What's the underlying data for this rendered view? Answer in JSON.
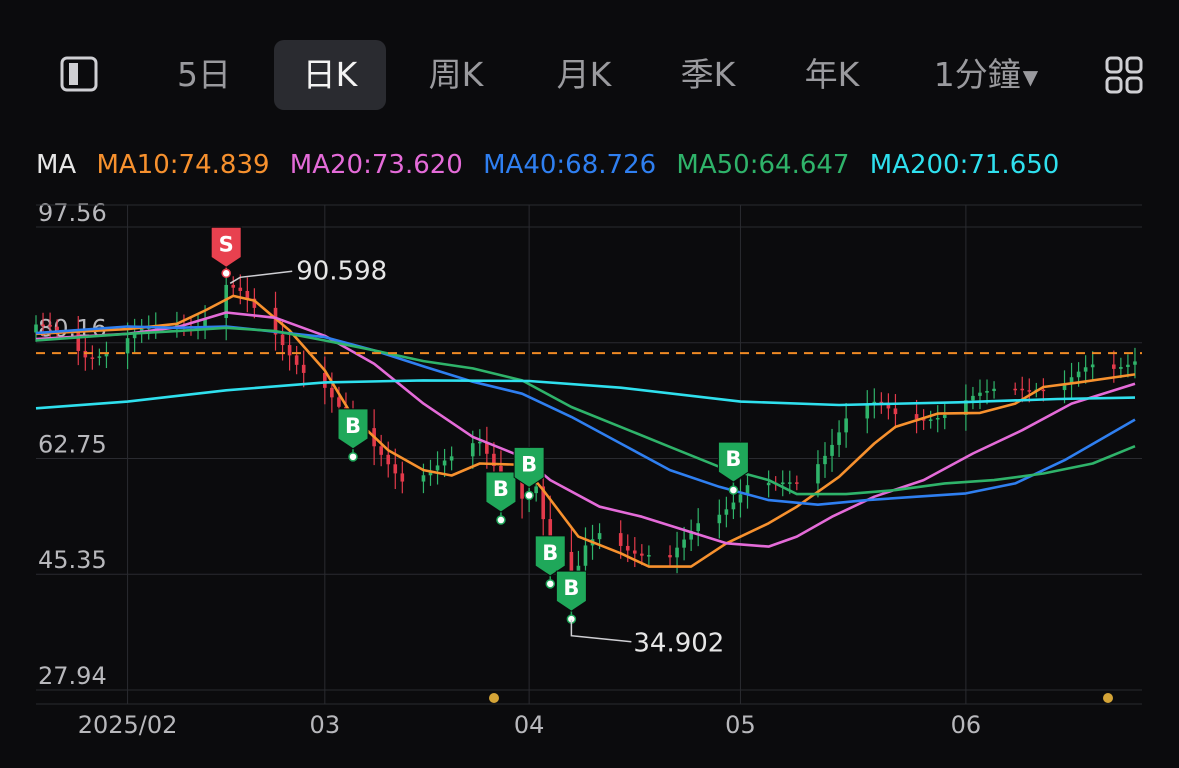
{
  "tabs": {
    "items": [
      {
        "label": "5日"
      },
      {
        "label": "日K"
      },
      {
        "label": "周K"
      },
      {
        "label": "月K"
      },
      {
        "label": "季K"
      },
      {
        "label": "年K"
      },
      {
        "label": "1分鐘"
      }
    ],
    "active_index": 1
  },
  "ma_legend": {
    "title": "MA",
    "items": [
      {
        "label": "MA10:74.839",
        "color": "#f7912e"
      },
      {
        "label": "MA20:73.620",
        "color": "#e46bd8"
      },
      {
        "label": "MA40:68.726",
        "color": "#2f7ff0"
      },
      {
        "label": "MA50:64.647",
        "color": "#2fb36a"
      },
      {
        "label": "MA200:71.650",
        "color": "#2fe0ee"
      }
    ]
  },
  "chart_data": {
    "type": "candlestick",
    "y_ticks": [
      "97.56",
      "80.16",
      "62.75",
      "45.35",
      "27.94"
    ],
    "ylim": [
      27.94,
      97.56
    ],
    "x_ticks": [
      {
        "label": "2025/02",
        "date": "2025-02-03"
      },
      {
        "label": "03",
        "date": "2025-03-03"
      },
      {
        "label": "04",
        "date": "2025-04-01"
      },
      {
        "label": "05",
        "date": "2025-05-01"
      },
      {
        "label": "06",
        "date": "2025-06-02"
      }
    ],
    "xlim": [
      "2025-01-21",
      "2025-06-27"
    ],
    "current_price": 78.6,
    "max_label": {
      "value": "90.598",
      "date": "2025-02-17"
    },
    "min_label": {
      "value": "34.902",
      "date": "2025-04-07"
    },
    "signals": [
      {
        "type": "S",
        "date": "2025-02-17",
        "price": 90.6
      },
      {
        "type": "B",
        "date": "2025-03-07",
        "price": 63.0
      },
      {
        "type": "B",
        "date": "2025-03-28",
        "price": 53.5
      },
      {
        "type": "B",
        "date": "2025-04-01",
        "price": 57.2
      },
      {
        "type": "B",
        "date": "2025-04-04",
        "price": 43.9
      },
      {
        "type": "B",
        "date": "2025-04-07",
        "price": 38.6
      },
      {
        "type": "B",
        "date": "2025-04-30",
        "price": 58.0
      }
    ],
    "price_points": [
      [
        "2025-01-21",
        81.7
      ],
      [
        "2025-01-24",
        81.0
      ],
      [
        "2025-01-28",
        79.0
      ],
      [
        "2025-02-03",
        80.5
      ],
      [
        "2025-02-07",
        81.5
      ],
      [
        "2025-02-10",
        83.0
      ],
      [
        "2025-02-13",
        84.0
      ],
      [
        "2025-02-17",
        89.0
      ],
      [
        "2025-02-19",
        87.0
      ],
      [
        "2025-02-21",
        84.0
      ],
      [
        "2025-02-25",
        80.0
      ],
      [
        "2025-02-27",
        78.0
      ],
      [
        "2025-03-03",
        74.0
      ],
      [
        "2025-03-05",
        70.0
      ],
      [
        "2025-03-07",
        66.0
      ],
      [
        "2025-03-11",
        63.0
      ],
      [
        "2025-03-14",
        60.5
      ],
      [
        "2025-03-18",
        61.5
      ],
      [
        "2025-03-21",
        62.0
      ],
      [
        "2025-03-25",
        64.5
      ],
      [
        "2025-03-27",
        62.0
      ],
      [
        "2025-03-31",
        58.0
      ],
      [
        "2025-04-02",
        59.0
      ],
      [
        "2025-04-04",
        48.0
      ],
      [
        "2025-04-07",
        42.0
      ],
      [
        "2025-04-09",
        49.0
      ],
      [
        "2025-04-11",
        52.0
      ],
      [
        "2025-04-14",
        51.0
      ],
      [
        "2025-04-17",
        48.5
      ],
      [
        "2025-04-21",
        46.5
      ],
      [
        "2025-04-23",
        49.5
      ],
      [
        "2025-04-25",
        53.0
      ],
      [
        "2025-04-29",
        56.5
      ],
      [
        "2025-05-02",
        59.0
      ],
      [
        "2025-05-06",
        57.5
      ],
      [
        "2025-05-09",
        58.5
      ],
      [
        "2025-05-13",
        64.5
      ],
      [
        "2025-05-16",
        69.5
      ],
      [
        "2025-05-20",
        70.0
      ],
      [
        "2025-05-23",
        68.5
      ],
      [
        "2025-05-28",
        70.0
      ],
      [
        "2025-06-02",
        71.0
      ],
      [
        "2025-06-05",
        71.5
      ],
      [
        "2025-06-09",
        73.5
      ],
      [
        "2025-06-12",
        74.5
      ],
      [
        "2025-06-16",
        74.0
      ],
      [
        "2025-06-20",
        75.5
      ],
      [
        "2025-06-23",
        76.0
      ],
      [
        "2025-06-26",
        78.6
      ]
    ],
    "series": [
      {
        "name": "MA10",
        "color": "#f7912e",
        "points": [
          [
            "2025-01-21",
            81.5
          ],
          [
            "2025-02-03",
            82.2
          ],
          [
            "2025-02-10",
            83.0
          ],
          [
            "2025-02-14",
            85.0
          ],
          [
            "2025-02-18",
            87.2
          ],
          [
            "2025-02-21",
            86.5
          ],
          [
            "2025-02-26",
            82.0
          ],
          [
            "2025-03-03",
            76.0
          ],
          [
            "2025-03-07",
            69.0
          ],
          [
            "2025-03-12",
            64.0
          ],
          [
            "2025-03-17",
            61.0
          ],
          [
            "2025-03-21",
            60.2
          ],
          [
            "2025-03-25",
            62.0
          ],
          [
            "2025-03-31",
            61.8
          ],
          [
            "2025-04-03",
            58.0
          ],
          [
            "2025-04-08",
            51.0
          ],
          [
            "2025-04-14",
            48.5
          ],
          [
            "2025-04-18",
            46.5
          ],
          [
            "2025-04-24",
            46.5
          ],
          [
            "2025-04-29",
            50.0
          ],
          [
            "2025-05-05",
            53.0
          ],
          [
            "2025-05-09",
            55.5
          ],
          [
            "2025-05-15",
            60.0
          ],
          [
            "2025-05-20",
            65.0
          ],
          [
            "2025-05-23",
            67.5
          ],
          [
            "2025-05-29",
            69.5
          ],
          [
            "2025-06-04",
            69.6
          ],
          [
            "2025-06-09",
            71.0
          ],
          [
            "2025-06-13",
            73.5
          ],
          [
            "2025-06-18",
            74.2
          ],
          [
            "2025-06-26",
            75.4
          ]
        ]
      },
      {
        "name": "MA20",
        "color": "#e46bd8",
        "points": [
          [
            "2025-01-21",
            80.7
          ],
          [
            "2025-02-03",
            81.5
          ],
          [
            "2025-02-10",
            82.5
          ],
          [
            "2025-02-17",
            84.7
          ],
          [
            "2025-02-24",
            83.9
          ],
          [
            "2025-03-03",
            81.2
          ],
          [
            "2025-03-10",
            77.0
          ],
          [
            "2025-03-17",
            71.0
          ],
          [
            "2025-03-24",
            66.0
          ],
          [
            "2025-03-31",
            63.0
          ],
          [
            "2025-04-04",
            59.5
          ],
          [
            "2025-04-11",
            55.5
          ],
          [
            "2025-04-17",
            54.0
          ],
          [
            "2025-04-23",
            52.0
          ],
          [
            "2025-04-29",
            50.0
          ],
          [
            "2025-05-05",
            49.5
          ],
          [
            "2025-05-09",
            51.0
          ],
          [
            "2025-05-14",
            54.0
          ],
          [
            "2025-05-20",
            57.0
          ],
          [
            "2025-05-27",
            59.5
          ],
          [
            "2025-06-03",
            63.5
          ],
          [
            "2025-06-10",
            67.0
          ],
          [
            "2025-06-17",
            71.0
          ],
          [
            "2025-06-26",
            74.0
          ]
        ]
      },
      {
        "name": "MA40",
        "color": "#2f7ff0",
        "points": [
          [
            "2025-01-21",
            81.6
          ],
          [
            "2025-02-03",
            82.6
          ],
          [
            "2025-02-10",
            82.4
          ],
          [
            "2025-02-17",
            82.6
          ],
          [
            "2025-02-24",
            81.8
          ],
          [
            "2025-03-03",
            81.0
          ],
          [
            "2025-03-10",
            79.0
          ],
          [
            "2025-03-17",
            76.6
          ],
          [
            "2025-03-24",
            74.3
          ],
          [
            "2025-03-31",
            72.5
          ],
          [
            "2025-04-07",
            69.0
          ],
          [
            "2025-04-14",
            65.0
          ],
          [
            "2025-04-21",
            61.0
          ],
          [
            "2025-04-28",
            58.5
          ],
          [
            "2025-05-05",
            56.5
          ],
          [
            "2025-05-12",
            55.8
          ],
          [
            "2025-05-19",
            56.5
          ],
          [
            "2025-05-26",
            57.0
          ],
          [
            "2025-06-02",
            57.5
          ],
          [
            "2025-06-09",
            59.0
          ],
          [
            "2025-06-16",
            62.5
          ],
          [
            "2025-06-26",
            68.6
          ]
        ]
      },
      {
        "name": "MA50",
        "color": "#2fb36a",
        "points": [
          [
            "2025-01-21",
            80.5
          ],
          [
            "2025-02-03",
            81.5
          ],
          [
            "2025-02-10",
            81.9
          ],
          [
            "2025-02-17",
            82.4
          ],
          [
            "2025-02-24",
            81.9
          ],
          [
            "2025-03-03",
            80.5
          ],
          [
            "2025-03-10",
            79.0
          ],
          [
            "2025-03-17",
            77.4
          ],
          [
            "2025-03-24",
            76.3
          ],
          [
            "2025-03-31",
            74.5
          ],
          [
            "2025-04-07",
            70.5
          ],
          [
            "2025-04-14",
            67.5
          ],
          [
            "2025-04-21",
            64.5
          ],
          [
            "2025-04-28",
            61.5
          ],
          [
            "2025-05-05",
            59.5
          ],
          [
            "2025-05-09",
            57.4
          ],
          [
            "2025-05-16",
            57.4
          ],
          [
            "2025-05-23",
            58.0
          ],
          [
            "2025-05-30",
            59.0
          ],
          [
            "2025-06-06",
            59.5
          ],
          [
            "2025-06-13",
            60.5
          ],
          [
            "2025-06-20",
            62.0
          ],
          [
            "2025-06-26",
            64.6
          ]
        ]
      },
      {
        "name": "MA200",
        "color": "#2fe0ee",
        "points": [
          [
            "2025-01-21",
            70.3
          ],
          [
            "2025-02-03",
            71.3
          ],
          [
            "2025-02-17",
            73.0
          ],
          [
            "2025-03-03",
            74.2
          ],
          [
            "2025-03-17",
            74.5
          ],
          [
            "2025-04-01",
            74.4
          ],
          [
            "2025-04-14",
            73.4
          ],
          [
            "2025-05-01",
            71.3
          ],
          [
            "2025-05-15",
            70.8
          ],
          [
            "2025-06-01",
            71.2
          ],
          [
            "2025-06-15",
            71.7
          ],
          [
            "2025-06-26",
            71.9
          ]
        ]
      }
    ]
  },
  "colors": {
    "up": "#2fb36a",
    "down": "#e23a4b",
    "grid": "#2a2b30",
    "current": "#f08a24"
  }
}
